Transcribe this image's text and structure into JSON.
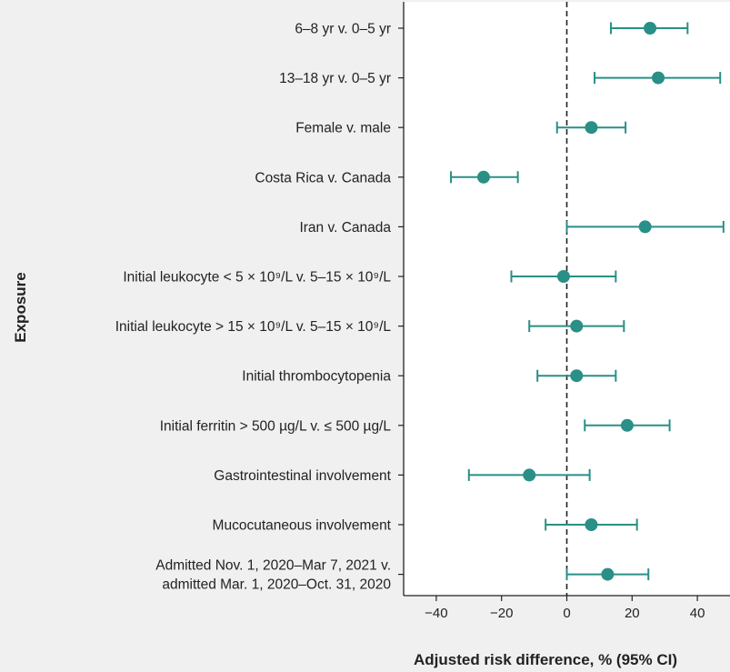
{
  "chart_data": {
    "type": "forest",
    "xlabel": "Adjusted risk difference, % (95% CI)",
    "ylabel": "Exposure",
    "xlim": [
      -50,
      50
    ],
    "xticks": [
      -40,
      -20,
      0,
      20,
      40
    ],
    "xtick_labels": [
      "−40",
      "−20",
      "0",
      "20",
      "40"
    ],
    "reference_line": 0,
    "reference_line_style": "dashed",
    "grid": false,
    "colors": {
      "marker": "#2a8f86",
      "background": "#f0f0f0",
      "plot_area": "#ffffff",
      "text": "#222222"
    },
    "rows": [
      {
        "label": "6–8 yr v. 0–5 yr",
        "estimate": 25.5,
        "lower": 13.5,
        "upper": 37
      },
      {
        "label": "13–18 yr v. 0–5 yr",
        "estimate": 28,
        "lower": 8.5,
        "upper": 47
      },
      {
        "label": "Female v. male",
        "estimate": 7.5,
        "lower": -3,
        "upper": 18
      },
      {
        "label": "Costa Rica v. Canada",
        "estimate": -25.5,
        "lower": -35.5,
        "upper": -15
      },
      {
        "label": "Iran v. Canada",
        "estimate": 24,
        "lower": 0,
        "upper": 48
      },
      {
        "label": "Initial leukocyte < 5 × 10⁹/L v. 5–15 × 10⁹/L",
        "estimate": -1,
        "lower": -17,
        "upper": 15
      },
      {
        "label": "Initial leukocyte > 15 × 10⁹/L v. 5–15 × 10⁹/L",
        "estimate": 3,
        "lower": -11.5,
        "upper": 17.5
      },
      {
        "label": "Initial thrombocytopenia",
        "estimate": 3,
        "lower": -9,
        "upper": 15
      },
      {
        "label": "Initial ferritin > 500 µg/L v. ≤ 500 µg/L",
        "estimate": 18.5,
        "lower": 5.5,
        "upper": 31.5
      },
      {
        "label": "Gastrointestinal involvement",
        "estimate": -11.5,
        "lower": -30,
        "upper": 7
      },
      {
        "label": "Mucocutaneous involvement",
        "estimate": 7.5,
        "lower": -6.5,
        "upper": 21.5
      },
      {
        "label_lines": [
          "Admitted Nov. 1, 2020–Mar 7, 2021 v.",
          "admitted Mar. 1, 2020–Oct. 31, 2020"
        ],
        "estimate": 12.5,
        "lower": 0,
        "upper": 25
      }
    ]
  }
}
